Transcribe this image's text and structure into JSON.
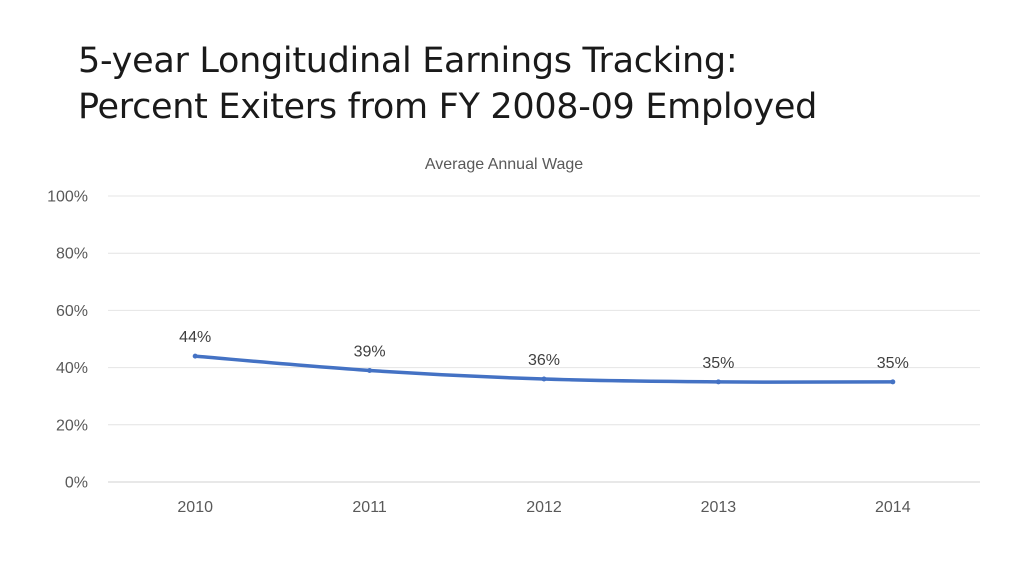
{
  "slide": {
    "title_line1": "5-year Longitudinal Earnings Tracking:",
    "title_line2": "Percent Exiters from FY 2008-09 Employed"
  },
  "chart_data": {
    "type": "line",
    "title": "Average Annual Wage",
    "categories": [
      "2010",
      "2011",
      "2012",
      "2013",
      "2014"
    ],
    "series": [
      {
        "values": [
          44,
          39,
          36,
          35,
          35
        ],
        "labels": [
          "44%",
          "39%",
          "36%",
          "35%",
          "35%"
        ],
        "color": "#4472C4"
      }
    ],
    "y_ticks": [
      "0%",
      "20%",
      "40%",
      "60%",
      "80%",
      "100%"
    ],
    "ylim": [
      0,
      100
    ],
    "grid": true,
    "legend": "none"
  }
}
